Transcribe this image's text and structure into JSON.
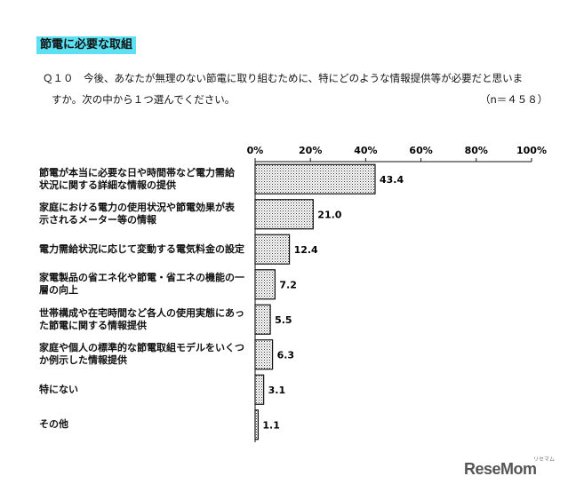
{
  "heading": "節電に必要な取組",
  "question": {
    "line1": "Ｑ１０　今後、あなたが無理のない節電に取り組むために、特にどのような情報提供等が必要だと思いま",
    "line2": "すか。次の中から１つ選んでください。",
    "n": "（n＝４５８）"
  },
  "chart_data": {
    "type": "bar",
    "orientation": "horizontal",
    "categories": [
      "節電が本当に必要な日や時間帯など電力需給\n状況に関する詳細な情報の提供",
      "家庭における電力の使用状況や節電効果が表\n示されるメーター等の情報",
      "電力需給状況に応じて変動する電気料金の設定",
      "家電製品の省エネ化や節電・省エネの機能の一\n層の向上",
      "世帯構成や在宅時間など各人の使用実態にあっ\nた節電に関する情報提供",
      "家庭や個人の標準的な節電取組モデルをいくつ\nか例示した情報提供",
      "特にない",
      "その他"
    ],
    "values": [
      43.4,
      21.0,
      12.4,
      7.2,
      5.5,
      6.3,
      3.1,
      1.1
    ],
    "value_labels": [
      "43.4",
      "21.0",
      "12.4",
      "7.2",
      "5.5",
      "6.3",
      "3.1",
      "1.1"
    ],
    "xlim": [
      0,
      100
    ],
    "ticks": [
      0,
      20,
      40,
      60,
      80,
      100
    ],
    "tick_labels": [
      "0%",
      "20%",
      "40%",
      "60%",
      "80%",
      "100%"
    ],
    "axis_position": "top",
    "grid": false,
    "bar_fill": "dotted"
  },
  "logo": {
    "text": "ReseMom",
    "sub": "リセマム"
  },
  "colors": {
    "heading_bg": "#5ce0f2",
    "bar_outline": "#111111",
    "logo": "#555555"
  }
}
